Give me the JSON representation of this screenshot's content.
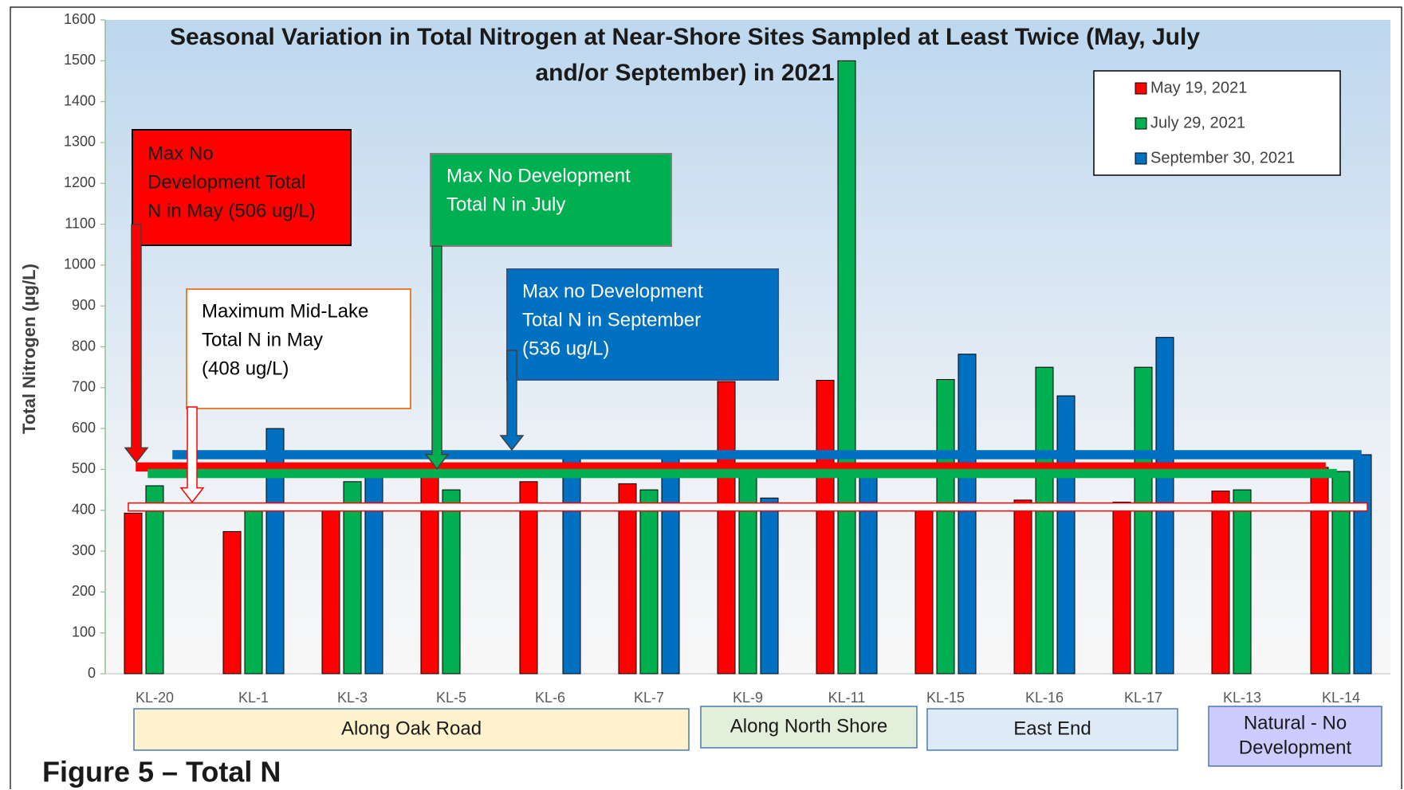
{
  "chart_data": {
    "type": "bar",
    "title_lines": [
      "Seasonal Variation in Total Nitrogen at Near-Shore Sites Sampled at Least Twice (May, July",
      "and/or September) in 2021"
    ],
    "y_label": "Total Nitrogen (µg/L)",
    "caption": "Figure 5 – Total N",
    "categories": [
      "KL-20",
      "KL-1",
      "KL-3",
      "KL-5",
      "KL-6",
      "KL-7",
      "KL-9",
      "KL-11",
      "KL-15",
      "KL-16",
      "KL-17",
      "KL-13",
      "KL-14"
    ],
    "series": [
      {
        "name": "May 19, 2021",
        "color": "#ff0000",
        "values": [
          393,
          348,
          415,
          500,
          470,
          465,
          715,
          718,
          405,
          425,
          420,
          447,
          505
        ]
      },
      {
        "name": "July 29, 2021",
        "color": "#00b050",
        "values": [
          460,
          410,
          470,
          450,
          null,
          450,
          500,
          1500,
          720,
          750,
          750,
          450,
          495
        ]
      },
      {
        "name": "September 30, 2021",
        "color": "#0070c0",
        "values": [
          null,
          600,
          510,
          null,
          530,
          530,
          430,
          510,
          782,
          680,
          823,
          null,
          536
        ]
      }
    ],
    "ylim": [
      0,
      1600
    ],
    "yticks": [
      0,
      100,
      200,
      300,
      400,
      500,
      600,
      700,
      800,
      900,
      1000,
      1100,
      1200,
      1300,
      1400,
      1500,
      1600
    ],
    "legend": "top-right",
    "reference_lines": [
      {
        "value": 506,
        "color": "#ff0000"
      },
      {
        "value": 490,
        "color": "#00b050"
      },
      {
        "value": 536,
        "color": "#0070c0"
      },
      {
        "value": 408,
        "color": "#ffffff"
      }
    ],
    "annotations": [
      {
        "lines": [
          "Max No",
          "Development Total",
          "N in May (506 ug/L)"
        ],
        "color": "#ff0000"
      },
      {
        "lines": [
          "Max No Development",
          "Total N in July"
        ],
        "color": "#00b050"
      },
      {
        "lines": [
          "Max no Development",
          "Total N in September",
          "(536 ug/L)"
        ],
        "color": "#0070c0"
      },
      {
        "lines": [
          "Maximum Mid-Lake",
          "Total N in May",
          "(408 ug/L)"
        ],
        "color": "#ffffff"
      }
    ],
    "groups": [
      {
        "lines": [
          "Along Oak Road"
        ],
        "color": "#fff2cc"
      },
      {
        "lines": [
          "Along North Shore"
        ],
        "color": "#e2efda"
      },
      {
        "lines": [
          "East End"
        ],
        "color": "#deebf7"
      },
      {
        "lines": [
          "Natural - No",
          "Development"
        ],
        "color": "#ccccff"
      }
    ]
  }
}
